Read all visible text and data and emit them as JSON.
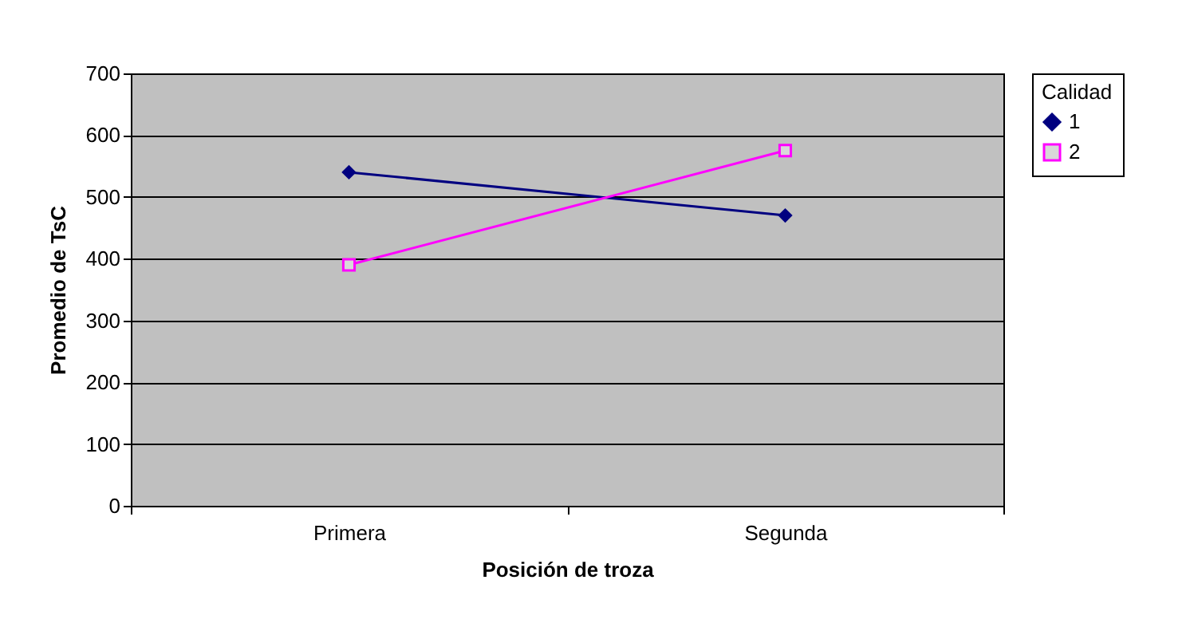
{
  "chart_data": {
    "type": "line",
    "xlabel": "Posición de troza",
    "ylabel": "Promedio de TsC",
    "legend_title": "Calidad",
    "categories": [
      "Primera",
      "Segunda"
    ],
    "series": [
      {
        "name": "1",
        "color": "#000080",
        "marker": "diamond",
        "values": [
          540,
          470
        ]
      },
      {
        "name": "2",
        "color": "#ff00ff",
        "marker": "square",
        "values": [
          390,
          575
        ]
      }
    ],
    "ylim": [
      0,
      700
    ],
    "yticks": [
      0,
      100,
      200,
      300,
      400,
      500,
      600,
      700
    ],
    "grid": "y",
    "legend": "right"
  }
}
